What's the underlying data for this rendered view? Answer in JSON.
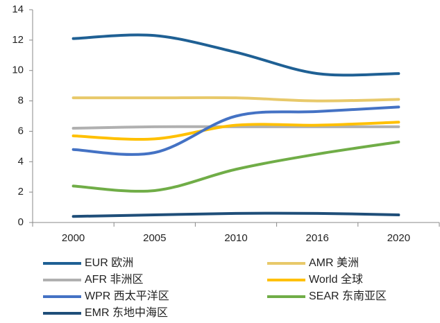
{
  "chart_data": {
    "type": "line",
    "categories": [
      "2000",
      "2005",
      "2010",
      "2016",
      "2020"
    ],
    "series": [
      {
        "name": "EUR 欧洲",
        "color": "#1f6094",
        "values": [
          12.1,
          12.3,
          11.2,
          9.8,
          9.8
        ]
      },
      {
        "name": "AMR 美洲",
        "color": "#e8c96a",
        "values": [
          8.2,
          8.2,
          8.2,
          8.0,
          8.1
        ]
      },
      {
        "name": "AFR 非洲区",
        "color": "#b0b0b0",
        "values": [
          6.2,
          6.3,
          6.3,
          6.3,
          6.3
        ]
      },
      {
        "name": "World 全球",
        "color": "#ffc000",
        "values": [
          5.7,
          5.5,
          6.4,
          6.4,
          6.6
        ]
      },
      {
        "name": "WPR 西太平洋区",
        "color": "#4472c4",
        "values": [
          4.8,
          4.6,
          7.0,
          7.3,
          7.6
        ]
      },
      {
        "name": "SEAR 东南亚区",
        "color": "#70ad47",
        "values": [
          2.4,
          2.1,
          3.5,
          4.5,
          5.3
        ]
      },
      {
        "name": "EMR 东地中海区",
        "color": "#1f4e79",
        "values": [
          0.4,
          0.5,
          0.6,
          0.6,
          0.5
        ]
      }
    ],
    "ylim": [
      0,
      14
    ],
    "yticks": [
      0,
      2,
      4,
      6,
      8,
      10,
      12,
      14
    ],
    "grid": false
  }
}
